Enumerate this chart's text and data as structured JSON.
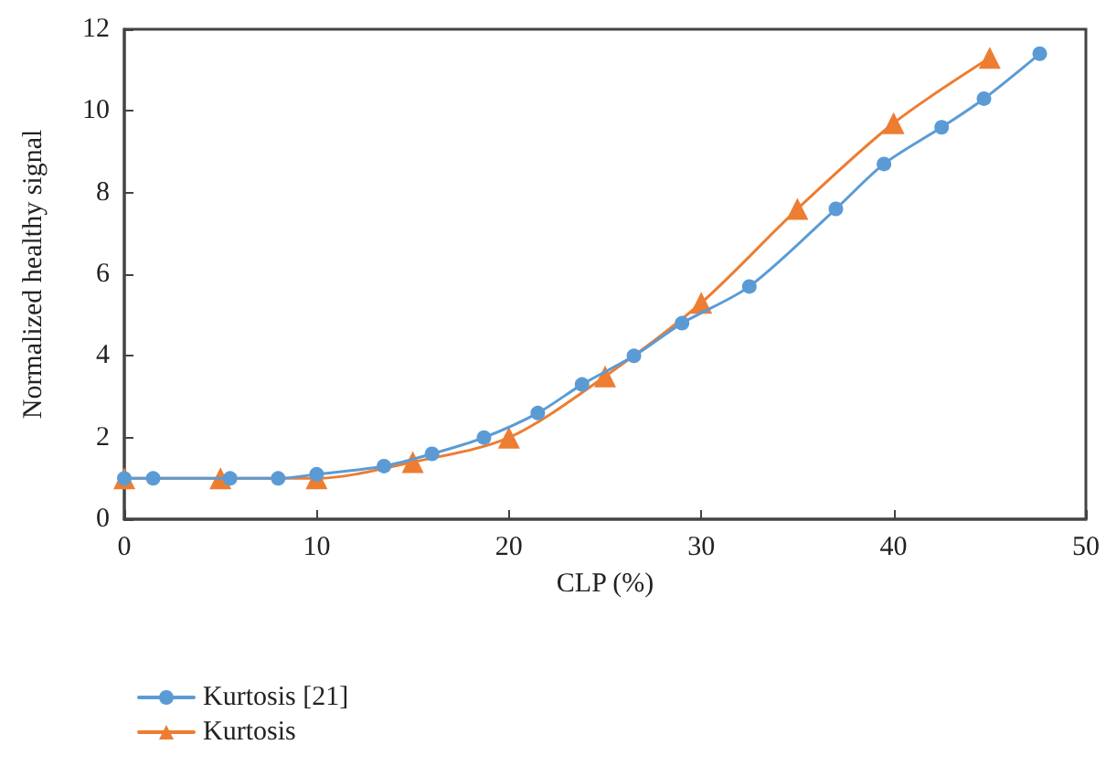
{
  "chart_data": {
    "type": "line",
    "xlabel": "CLP (%)",
    "ylabel": "Normalized healthy signal",
    "xlim": [
      0,
      50
    ],
    "xticks": [
      0,
      10,
      20,
      30,
      40,
      50
    ],
    "ylim": [
      0,
      12
    ],
    "yticks": [
      0,
      2,
      4,
      6,
      8,
      10,
      12
    ],
    "grid": false,
    "legend": "bottom left",
    "line_style": "solid",
    "series": [
      {
        "name": "Kurtosis [21]",
        "color": "#5b9bd5",
        "marker": "circle",
        "x": [
          0,
          1.5,
          5.5,
          8,
          10,
          13.5,
          16,
          18.7,
          21.5,
          23.8,
          26.5,
          29,
          32.5,
          37,
          39.5,
          42.5,
          44.7,
          47.6
        ],
        "values": [
          1,
          1,
          1,
          1,
          1.1,
          1.3,
          1.6,
          2,
          2.6,
          3.3,
          4,
          4.8,
          5.7,
          7.6,
          8.7,
          9.6,
          10.3,
          11.4
        ]
      },
      {
        "name": "Kurtosis",
        "color": "#ed7d31",
        "marker": "triangle",
        "x": [
          0,
          5,
          10,
          15,
          20,
          25,
          30,
          35,
          40,
          45
        ],
        "values": [
          1,
          1,
          1,
          1.4,
          2,
          3.5,
          5.3,
          7.6,
          9.7,
          11.3
        ]
      }
    ]
  }
}
